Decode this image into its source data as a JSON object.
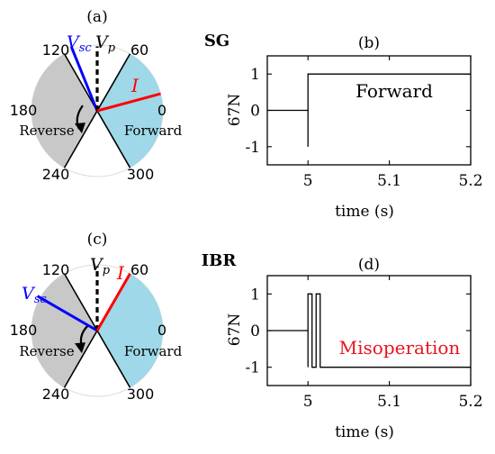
{
  "chart_data": [
    {
      "type": "phasor",
      "panel_label": "(a)",
      "angle_labels": [
        "120",
        "60",
        "180",
        "0",
        "240",
        "300"
      ],
      "forward_zone_deg": [
        -60,
        60
      ],
      "reverse_zone_deg": [
        120,
        240
      ],
      "zone_labels": {
        "forward": "Forward",
        "reverse": "Reverse"
      },
      "phasors": [
        {
          "name": "V_sc",
          "base": "V",
          "sub": "sc",
          "angle_deg": 112,
          "color": "#0000ff"
        },
        {
          "name": "V_p",
          "base": "V",
          "sub": "p",
          "angle_deg": 90,
          "color": "#000000"
        },
        {
          "name": "I",
          "base": "I",
          "sub": "",
          "angle_deg": 15,
          "color": "#ff0000"
        }
      ],
      "colors": {
        "forward": "#9fd8e8",
        "reverse": "#c8c8c8"
      }
    },
    {
      "type": "line",
      "panel_label": "(b)",
      "side_label": "SG",
      "xlabel": "time (s)",
      "ylabel": "67N",
      "xlim": [
        4.95,
        5.2
      ],
      "ylim": [
        -1.5,
        1.5
      ],
      "xticks": [
        5,
        5.1,
        5.2
      ],
      "xtick_labels": [
        "5",
        "5.1",
        "5.2"
      ],
      "yticks": [
        1,
        0,
        -1
      ],
      "ytick_labels": [
        "1",
        "0",
        "-1"
      ],
      "grid": false,
      "annotation": "Forward",
      "annotation_color": "#000000",
      "series": [
        {
          "x": [
            4.95,
            5.0,
            5.0,
            5.0,
            5.0,
            5.2
          ],
          "y": [
            0,
            0,
            -1,
            -1,
            1,
            1
          ]
        }
      ]
    },
    {
      "type": "phasor",
      "panel_label": "(c)",
      "angle_labels": [
        "120",
        "60",
        "180",
        "0",
        "240",
        "300"
      ],
      "forward_zone_deg": [
        -60,
        60
      ],
      "reverse_zone_deg": [
        120,
        240
      ],
      "zone_labels": {
        "forward": "Forward",
        "reverse": "Reverse"
      },
      "phasors": [
        {
          "name": "V_sc",
          "base": "V",
          "sub": "sc",
          "angle_deg": 150,
          "color": "#0000ff"
        },
        {
          "name": "V_p",
          "base": "V",
          "sub": "p",
          "angle_deg": 90,
          "color": "#000000"
        },
        {
          "name": "I",
          "base": "I",
          "sub": "",
          "angle_deg": 60,
          "color": "#ff0000"
        }
      ],
      "colors": {
        "forward": "#9fd8e8",
        "reverse": "#c8c8c8"
      }
    },
    {
      "type": "line",
      "panel_label": "(d)",
      "side_label": "IBR",
      "xlabel": "time (s)",
      "ylabel": "67N",
      "xlim": [
        4.95,
        5.2
      ],
      "ylim": [
        -1.5,
        1.5
      ],
      "xticks": [
        5,
        5.1,
        5.2
      ],
      "xtick_labels": [
        "5",
        "5.1",
        "5.2"
      ],
      "yticks": [
        1,
        0,
        -1
      ],
      "ytick_labels": [
        "1",
        "0",
        "-1"
      ],
      "grid": false,
      "annotation": "Misoperation",
      "annotation_color": "#e8141e",
      "series": [
        {
          "x": [
            4.95,
            5.0,
            5.0,
            5.0,
            5.005,
            5.005,
            5.01,
            5.01,
            5.015,
            5.015,
            5.02,
            5.02,
            5.2
          ],
          "y": [
            0,
            0,
            -1,
            1,
            1,
            -1,
            -1,
            1,
            1,
            -1,
            -1,
            -1,
            -1
          ]
        }
      ]
    }
  ]
}
